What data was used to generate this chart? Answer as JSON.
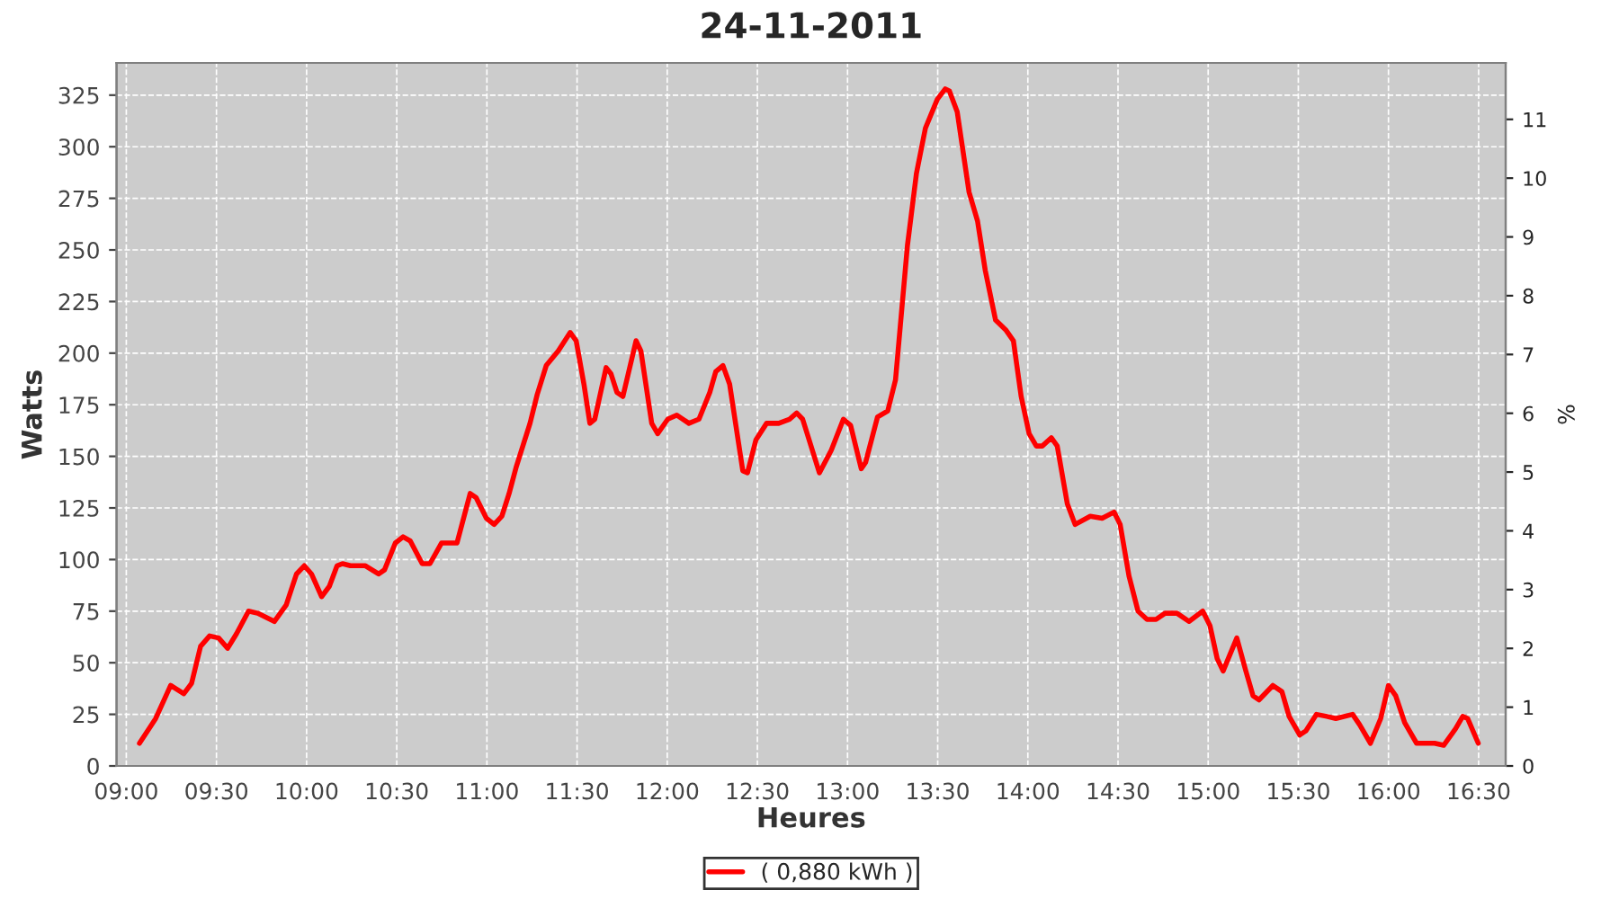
{
  "chart_data": {
    "type": "line",
    "title": "24-11-2011",
    "xlabel": "Heures",
    "ylabel": "Watts",
    "y2label": "%",
    "x": [
      9.073,
      9.163,
      9.246,
      9.319,
      9.362,
      9.412,
      9.462,
      9.512,
      9.562,
      9.611,
      9.678,
      9.728,
      9.821,
      9.887,
      9.944,
      9.987,
      10.027,
      10.083,
      10.126,
      10.169,
      10.199,
      10.243,
      10.326,
      10.399,
      10.432,
      10.492,
      10.535,
      10.575,
      10.641,
      10.684,
      10.748,
      10.791,
      10.834,
      10.907,
      10.94,
      10.997,
      11.04,
      11.083,
      11.123,
      11.163,
      11.239,
      11.279,
      11.329,
      11.395,
      11.462,
      11.495,
      11.538,
      11.571,
      11.598,
      11.661,
      11.688,
      11.721,
      11.754,
      11.827,
      11.854,
      11.914,
      11.947,
      12.003,
      12.053,
      12.12,
      12.176,
      12.236,
      12.269,
      12.309,
      12.346,
      12.379,
      12.419,
      12.445,
      12.492,
      12.551,
      12.618,
      12.678,
      12.718,
      12.751,
      12.844,
      12.91,
      12.977,
      13.017,
      13.076,
      13.1,
      13.166,
      13.223,
      13.266,
      13.332,
      13.382,
      13.432,
      13.498,
      13.542,
      13.565,
      13.608,
      13.674,
      13.721,
      13.764,
      13.821,
      13.88,
      13.92,
      13.963,
      14.007,
      14.047,
      14.08,
      14.13,
      14.163,
      14.219,
      14.262,
      14.346,
      14.412,
      14.478,
      14.512,
      14.561,
      14.611,
      14.661,
      14.711,
      14.761,
      14.827,
      14.894,
      14.97,
      15.01,
      15.05,
      15.083,
      15.159,
      15.209,
      15.249,
      15.282,
      15.359,
      15.409,
      15.449,
      15.508,
      15.542,
      15.601,
      15.658,
      15.708,
      15.801,
      15.84,
      15.9,
      15.957,
      16.0,
      16.04,
      16.09,
      16.156,
      16.256,
      16.306,
      16.372,
      16.412,
      16.439,
      16.498
    ],
    "series": [
      {
        "name": "( 0,880 kWh )",
        "color": "#ff0000",
        "values": [
          11,
          23,
          39,
          35,
          40,
          58,
          63,
          62,
          57,
          64,
          75,
          74,
          70,
          78,
          93,
          97,
          93,
          82,
          87,
          97,
          98,
          97,
          97,
          93,
          95,
          108,
          111,
          109,
          98,
          98,
          108,
          108,
          108,
          132,
          130,
          120,
          117,
          121,
          132,
          145,
          166,
          180,
          194,
          201,
          210,
          206,
          185,
          166,
          168,
          193,
          190,
          181,
          179,
          206,
          201,
          166,
          161,
          168,
          170,
          166,
          168,
          181,
          191,
          194,
          185,
          166,
          143,
          142,
          158,
          166,
          166,
          168,
          171,
          168,
          142,
          153,
          168,
          165,
          144,
          147,
          169,
          172,
          187,
          252,
          287,
          309,
          323,
          328,
          327,
          317,
          278,
          264,
          240,
          216,
          211,
          206,
          179,
          161,
          155,
          155,
          159,
          155,
          127,
          117,
          121,
          120,
          123,
          117,
          92,
          75,
          71,
          71,
          74,
          74,
          70,
          75,
          68,
          52,
          46,
          62,
          46,
          34,
          32,
          39,
          36,
          24,
          15,
          17,
          25,
          24,
          23,
          25,
          20,
          11,
          23,
          39,
          34,
          21,
          11,
          11,
          10,
          18,
          24,
          23,
          11
        ]
      }
    ],
    "xlim": [
      8.946,
      16.65
    ],
    "ylim": [
      0,
      340.6
    ],
    "y2lim": [
      0,
      11.96
    ],
    "xticks": [
      {
        "value": 9,
        "label": "09:00"
      },
      {
        "value": 9.5,
        "label": "09:30"
      },
      {
        "value": 10,
        "label": "10:00"
      },
      {
        "value": 10.5,
        "label": "10:30"
      },
      {
        "value": 11,
        "label": "11:00"
      },
      {
        "value": 11.5,
        "label": "11:30"
      },
      {
        "value": 12,
        "label": "12:00"
      },
      {
        "value": 12.5,
        "label": "12:30"
      },
      {
        "value": 13,
        "label": "13:00"
      },
      {
        "value": 13.5,
        "label": "13:30"
      },
      {
        "value": 14,
        "label": "14:00"
      },
      {
        "value": 14.5,
        "label": "14:30"
      },
      {
        "value": 15,
        "label": "15:00"
      },
      {
        "value": 15.5,
        "label": "15:30"
      },
      {
        "value": 16,
        "label": "16:00"
      },
      {
        "value": 16.5,
        "label": "16:30"
      }
    ],
    "yticks": [
      0,
      25,
      50,
      75,
      100,
      125,
      150,
      175,
      200,
      225,
      250,
      275,
      300,
      325
    ],
    "y2ticks": [
      0,
      1,
      2,
      3,
      4,
      5,
      6,
      7,
      8,
      9,
      10,
      11
    ],
    "grid": true,
    "legend": "bottom",
    "marker": "none",
    "line_style": "solid"
  }
}
